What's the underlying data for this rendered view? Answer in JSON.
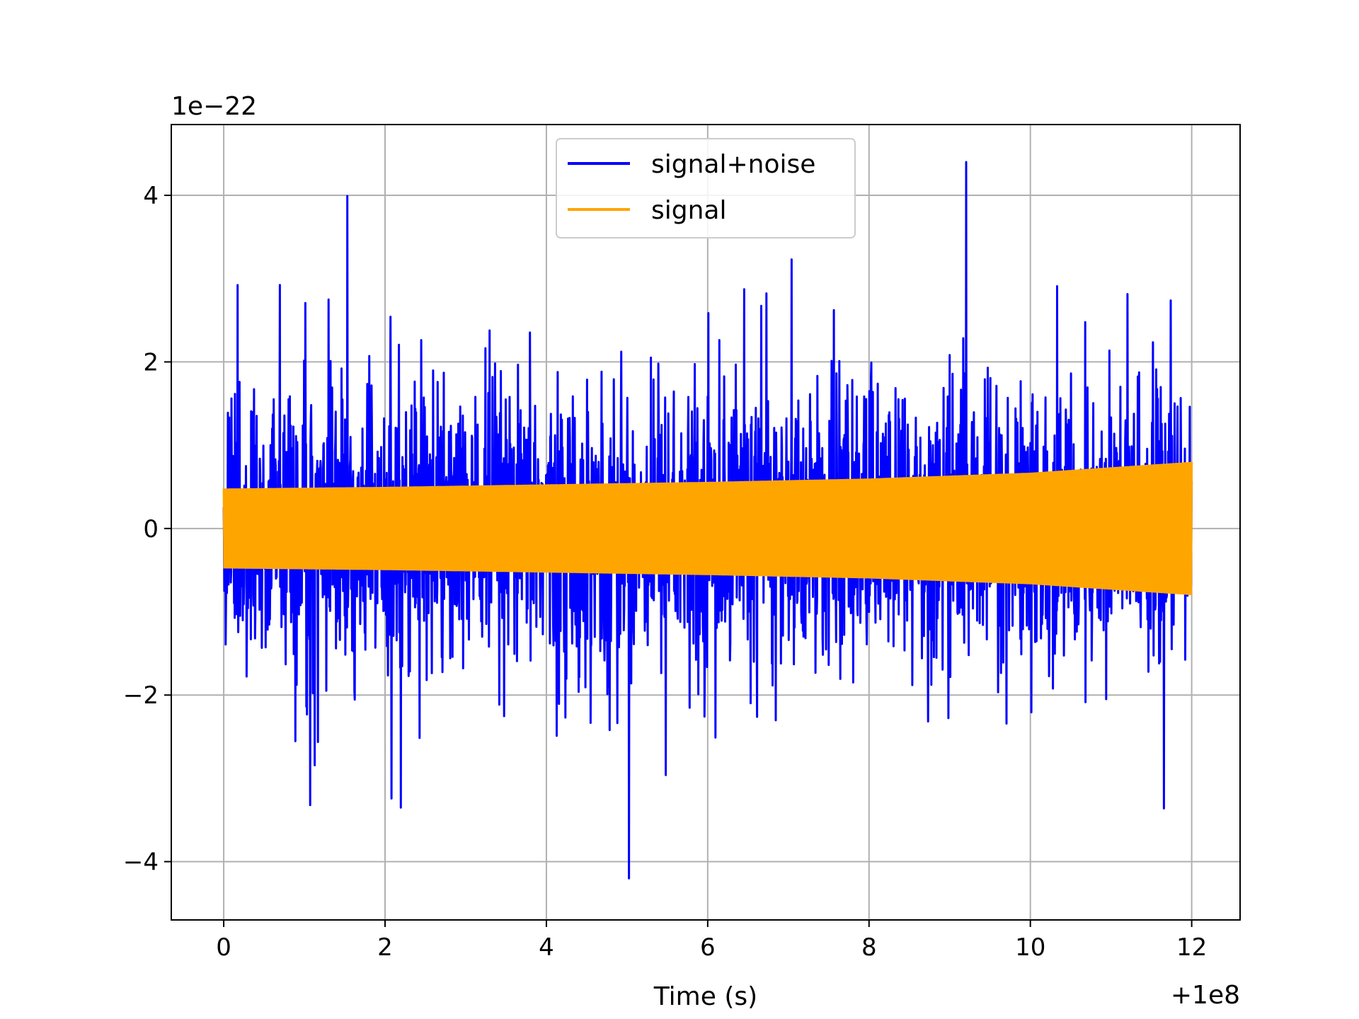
{
  "chart_data": {
    "type": "line",
    "title": "",
    "xlabel": "Time (s)",
    "ylabel": "",
    "x_offset_label": "+1e8",
    "y_multiplier_label": "1e−22",
    "xlim": [
      -0.65,
      12.6
    ],
    "ylim": [
      -4.7,
      4.85
    ],
    "x_ticks": [
      0,
      2,
      4,
      6,
      8,
      10,
      12
    ],
    "x_tick_labels": [
      "0",
      "2",
      "4",
      "6",
      "8",
      "10",
      "12"
    ],
    "y_ticks": [
      -4,
      -2,
      0,
      2,
      4
    ],
    "y_tick_labels": [
      "−4",
      "−2",
      "0",
      "2",
      "4"
    ],
    "grid": true,
    "legend_position": "top-center",
    "series": [
      {
        "name": "signal+noise",
        "color": "#0000ff",
        "x_range": [
          0,
          12
        ],
        "amplitude_peak_max": 4.4,
        "amplitude_peak_min": -4.2,
        "typical_amplitude": 1.5
      },
      {
        "name": "signal",
        "color": "#ffa500",
        "x_range": [
          0,
          12
        ],
        "envelope": {
          "x": [
            0,
            2,
            4,
            6,
            8,
            10,
            12
          ],
          "amplitude": [
            0.48,
            0.5,
            0.53,
            0.56,
            0.6,
            0.67,
            0.8
          ]
        }
      }
    ]
  }
}
